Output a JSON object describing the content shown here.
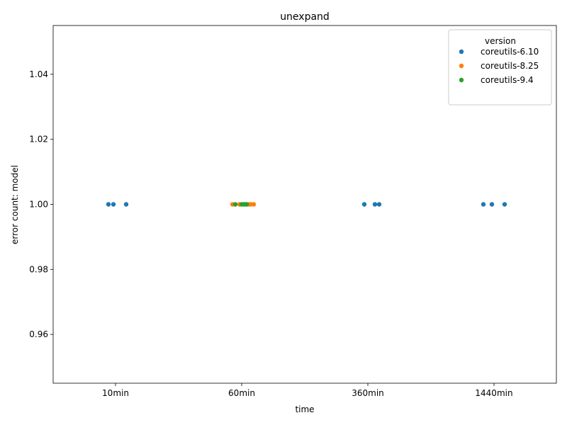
{
  "chart_data": {
    "type": "scatter",
    "title": "unexpand",
    "xlabel": "time",
    "ylabel": "error count: model",
    "categories": [
      "10min",
      "60min",
      "360min",
      "1440min"
    ],
    "ylim": [
      0.945,
      1.055
    ],
    "yticks": [
      "0.96",
      "0.98",
      "1.00",
      "1.02",
      "1.04"
    ],
    "ytick_values": [
      0.96,
      0.98,
      1.0,
      1.02,
      1.04
    ],
    "grid": false,
    "legend": {
      "title": "version",
      "placement": "top-right"
    },
    "series": [
      {
        "name": "coreutils-6.10",
        "color": "#1f77b4",
        "points": [
          {
            "category": "10min",
            "y": 1.0
          },
          {
            "category": "10min",
            "y": 1.0
          },
          {
            "category": "10min",
            "y": 1.0
          },
          {
            "category": "360min",
            "y": 1.0
          },
          {
            "category": "360min",
            "y": 1.0
          },
          {
            "category": "360min",
            "y": 1.0
          },
          {
            "category": "1440min",
            "y": 1.0
          },
          {
            "category": "1440min",
            "y": 1.0
          },
          {
            "category": "1440min",
            "y": 1.0
          }
        ]
      },
      {
        "name": "coreutils-8.25",
        "color": "#ff7f0e",
        "points": [
          {
            "category": "60min",
            "y": 1.0
          },
          {
            "category": "60min",
            "y": 1.0
          },
          {
            "category": "60min",
            "y": 1.0
          },
          {
            "category": "60min",
            "y": 1.0
          },
          {
            "category": "60min",
            "y": 1.0
          }
        ]
      },
      {
        "name": "coreutils-9.4",
        "color": "#2ca02c",
        "points": [
          {
            "category": "60min",
            "y": 1.0
          },
          {
            "category": "60min",
            "y": 1.0
          },
          {
            "category": "60min",
            "y": 1.0
          },
          {
            "category": "60min",
            "y": 1.0
          },
          {
            "category": "60min",
            "y": 1.0
          }
        ]
      }
    ]
  }
}
